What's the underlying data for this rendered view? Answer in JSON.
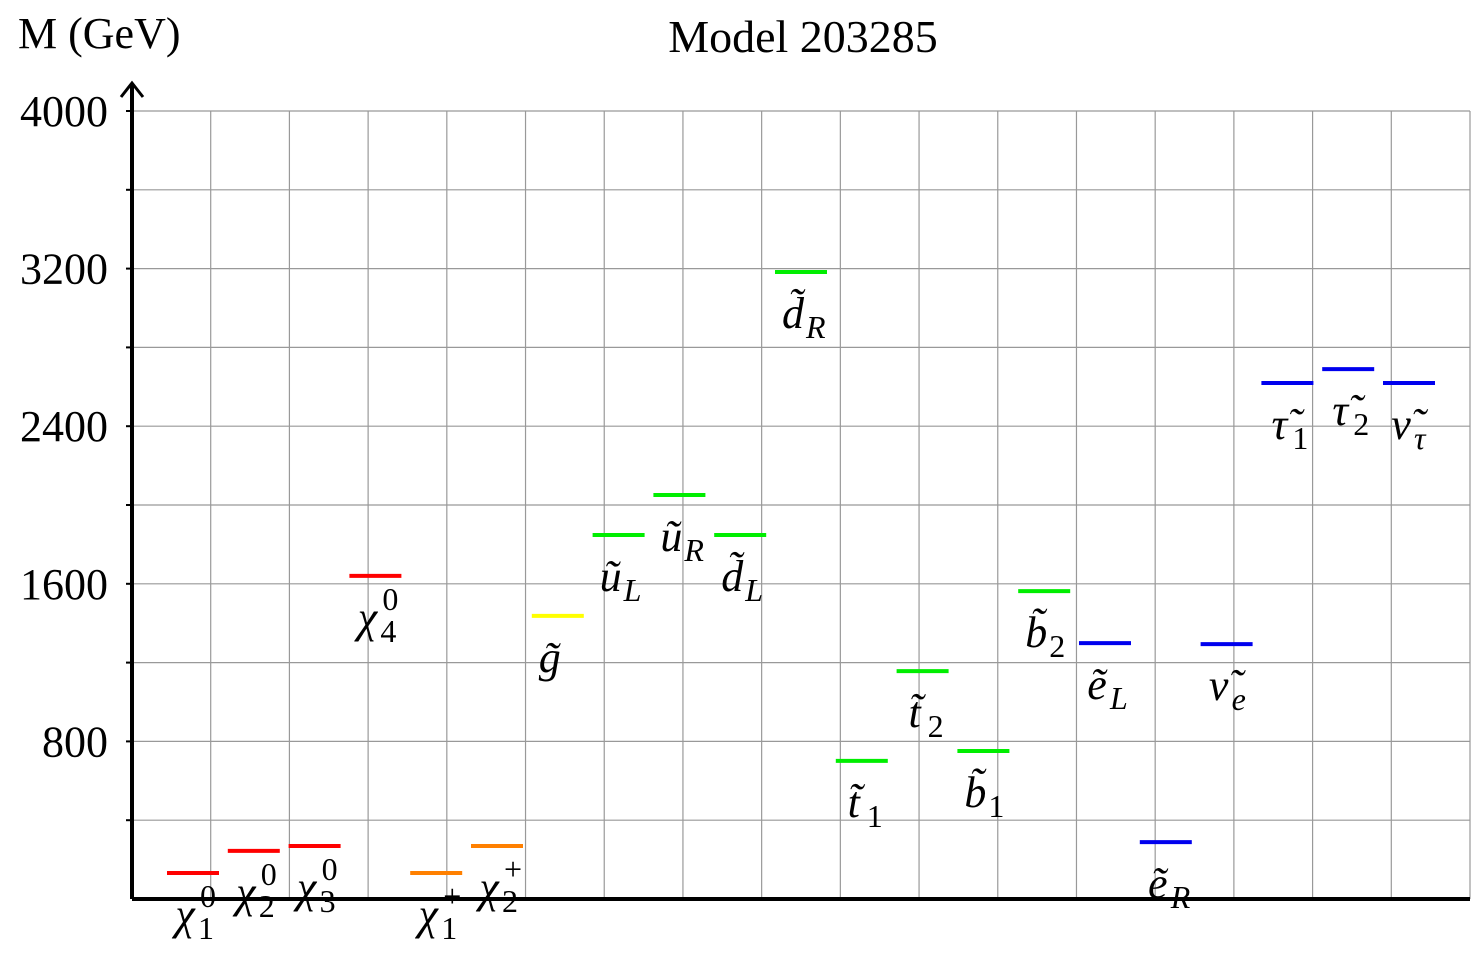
{
  "chart_data": {
    "type": "spectrum",
    "title": "Model 203285",
    "y_label": "M (GeV)",
    "categories": [
      "χ",
      "χ",
      "χ",
      "χ",
      "χ",
      "χ",
      "g̃",
      "ũ",
      "ũ",
      "d̃",
      "d̃",
      "t̃",
      "t̃",
      "b̃",
      "b̃",
      "ẽ",
      "ẽ",
      "ν̃",
      "τ̃",
      "τ̃",
      "ν̃"
    ],
    "subscripts": [
      "1",
      "2",
      "3",
      "4",
      "1",
      "2",
      null,
      "L",
      "R",
      "L",
      "R",
      "1",
      "2",
      "1",
      "2",
      "L",
      "R",
      "e",
      "1",
      "2",
      "τ"
    ],
    "superscripts": [
      "0",
      "0",
      "0",
      "0",
      "+",
      "+",
      null,
      null,
      null,
      null,
      null,
      null,
      null,
      null,
      null,
      null,
      null,
      null,
      null,
      null,
      null
    ],
    "values": [
      132,
      244,
      269,
      1640,
      132,
      269,
      1437,
      1848,
      2051,
      1848,
      3183,
      701,
      1157,
      751,
      1563,
      1299,
      289,
      1294,
      2619,
      2690,
      2619
    ],
    "colors": [
      "#ff0000",
      "#ff0000",
      "#ff0000",
      "#ff0000",
      "#ff8000",
      "#ff8000",
      "#ffff00",
      "#00ee00",
      "#00ee00",
      "#00ee00",
      "#00ee00",
      "#00ee00",
      "#00ee00",
      "#00ee00",
      "#00ee00",
      "#0000ee",
      "#0000ee",
      "#0000ee",
      "#0000ee",
      "#0000ee",
      "#0000ee"
    ],
    "ylim": [
      0,
      4000
    ],
    "yticks": [
      800,
      1600,
      2400,
      3200,
      4000
    ],
    "yticks_minor": [
      400,
      1200,
      2000,
      2800,
      3600
    ],
    "grid": true
  }
}
